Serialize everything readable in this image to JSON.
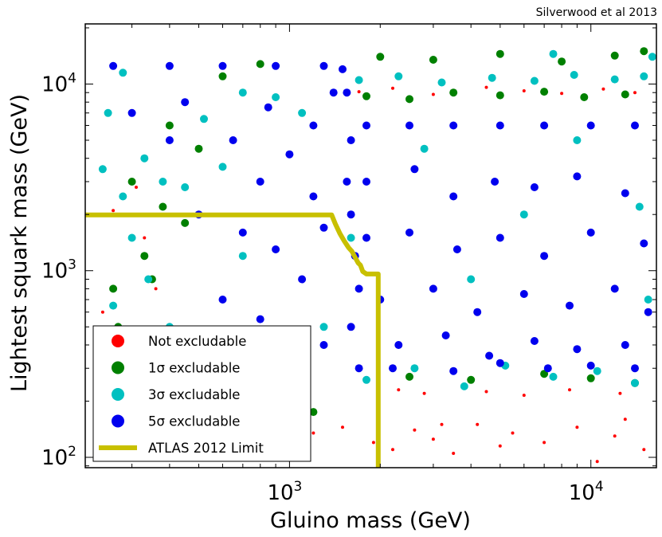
{
  "credit": "Silverwood et al 2013",
  "chart_data": {
    "type": "scatter",
    "xlabel": "Gluino mass (GeV)",
    "ylabel": "Lightest squark mass (GeV)",
    "xscale": "log",
    "yscale": "log",
    "xlim": [
      210,
      16500
    ],
    "ylim": [
      88,
      21000
    ],
    "xticks": [
      {
        "value": 1000,
        "base": "10",
        "exp": "3"
      },
      {
        "value": 10000,
        "base": "10",
        "exp": "4"
      }
    ],
    "yticks": [
      {
        "value": 100,
        "base": "10",
        "exp": "2"
      },
      {
        "value": 1000,
        "base": "10",
        "exp": "3"
      },
      {
        "value": 10000,
        "base": "10",
        "exp": "4"
      }
    ],
    "grid": false,
    "legend_position": "bottom-left",
    "series": [
      {
        "name": "Not excludable",
        "color": "#ff0000",
        "marker": "point",
        "points": [
          [
            300,
            150
          ],
          [
            420,
            130
          ],
          [
            600,
            160
          ],
          [
            800,
            140
          ],
          [
            1200,
            135
          ],
          [
            1500,
            145
          ],
          [
            2200,
            110
          ],
          [
            2600,
            140
          ],
          [
            3000,
            125
          ],
          [
            3500,
            105
          ],
          [
            4200,
            150
          ],
          [
            5500,
            135
          ],
          [
            7000,
            120
          ],
          [
            9000,
            145
          ],
          [
            12000,
            130
          ],
          [
            15000,
            110
          ],
          [
            2300,
            230
          ],
          [
            2800,
            220
          ],
          [
            4500,
            225
          ],
          [
            6000,
            215
          ],
          [
            8500,
            230
          ],
          [
            12500,
            220
          ],
          [
            1700,
            9100
          ],
          [
            2200,
            9500
          ],
          [
            3000,
            8800
          ],
          [
            4500,
            9600
          ],
          [
            6000,
            9200
          ],
          [
            8000,
            8900
          ],
          [
            11000,
            9400
          ],
          [
            14000,
            9000
          ],
          [
            260,
            2100
          ],
          [
            330,
            1500
          ],
          [
            360,
            800
          ],
          [
            250,
            350
          ],
          [
            240,
            600
          ],
          [
            310,
            2800
          ],
          [
            900,
            135
          ],
          [
            1900,
            120
          ],
          [
            3200,
            150
          ],
          [
            5000,
            115
          ],
          [
            10500,
            95
          ],
          [
            13000,
            160
          ]
        ]
      },
      {
        "name": "1σ excludable",
        "color": "#008000",
        "marker": "circle",
        "points": [
          [
            300,
            3000
          ],
          [
            380,
            2200
          ],
          [
            450,
            1800
          ],
          [
            330,
            1200
          ],
          [
            270,
            500
          ],
          [
            500,
            4500
          ],
          [
            260,
            800
          ],
          [
            1800,
            8600
          ],
          [
            2500,
            8300
          ],
          [
            3500,
            9000
          ],
          [
            5000,
            8700
          ],
          [
            7000,
            9100
          ],
          [
            9500,
            8500
          ],
          [
            13000,
            8800
          ],
          [
            2000,
            14000
          ],
          [
            3000,
            13500
          ],
          [
            5000,
            14500
          ],
          [
            8000,
            13200
          ],
          [
            12000,
            14200
          ],
          [
            15000,
            15000
          ],
          [
            2500,
            270
          ],
          [
            4000,
            260
          ],
          [
            7000,
            280
          ],
          [
            10000,
            265
          ],
          [
            14000,
            250
          ],
          [
            600,
            11000
          ],
          [
            800,
            12800
          ],
          [
            400,
            6000
          ],
          [
            350,
            900
          ],
          [
            900,
            190
          ],
          [
            1200,
            175
          ]
        ]
      },
      {
        "name": "3σ excludable",
        "color": "#00c0c0",
        "marker": "circle",
        "points": [
          [
            240,
            3500
          ],
          [
            280,
            2500
          ],
          [
            330,
            4000
          ],
          [
            380,
            3000
          ],
          [
            300,
            1500
          ],
          [
            340,
            900
          ],
          [
            260,
            650
          ],
          [
            400,
            500
          ],
          [
            520,
            6500
          ],
          [
            700,
            9000
          ],
          [
            900,
            8500
          ],
          [
            1100,
            7000
          ],
          [
            600,
            3600
          ],
          [
            450,
            2800
          ],
          [
            250,
            7000
          ],
          [
            280,
            11500
          ],
          [
            1700,
            10500
          ],
          [
            2300,
            11000
          ],
          [
            3200,
            10200
          ],
          [
            4700,
            10800
          ],
          [
            6500,
            10400
          ],
          [
            8800,
            11200
          ],
          [
            12000,
            10600
          ],
          [
            15000,
            11000
          ],
          [
            1800,
            260
          ],
          [
            2600,
            300
          ],
          [
            3800,
            240
          ],
          [
            5200,
            310
          ],
          [
            7500,
            270
          ],
          [
            10500,
            290
          ],
          [
            14000,
            250
          ],
          [
            15500,
            700
          ],
          [
            14500,
            2200
          ],
          [
            1600,
            1500
          ],
          [
            2800,
            4500
          ],
          [
            4000,
            900
          ],
          [
            6000,
            2000
          ],
          [
            9000,
            5000
          ],
          [
            1300,
            500
          ],
          [
            700,
            1200
          ],
          [
            1000,
            380
          ],
          [
            16000,
            14000
          ],
          [
            7500,
            14500
          ]
        ]
      },
      {
        "name": "5σ excludable",
        "color": "#0000ee",
        "marker": "circle",
        "points": [
          [
            260,
            12500
          ],
          [
            400,
            12500
          ],
          [
            600,
            12500
          ],
          [
            900,
            12500
          ],
          [
            1300,
            12500
          ],
          [
            1500,
            12000
          ],
          [
            1550,
            9000
          ],
          [
            1600,
            5000
          ],
          [
            1550,
            3000
          ],
          [
            1600,
            2000
          ],
          [
            1650,
            1200
          ],
          [
            1700,
            800
          ],
          [
            1600,
            500
          ],
          [
            1700,
            300
          ],
          [
            1800,
            6000
          ],
          [
            2500,
            6000
          ],
          [
            3500,
            6000
          ],
          [
            5000,
            6000
          ],
          [
            7000,
            6000
          ],
          [
            10000,
            6000
          ],
          [
            14000,
            6000
          ],
          [
            1800,
            3000
          ],
          [
            2600,
            3500
          ],
          [
            3500,
            2500
          ],
          [
            4800,
            3000
          ],
          [
            6500,
            2800
          ],
          [
            9000,
            3200
          ],
          [
            13000,
            2600
          ],
          [
            1800,
            1500
          ],
          [
            2500,
            1600
          ],
          [
            3600,
            1300
          ],
          [
            5000,
            1500
          ],
          [
            7000,
            1200
          ],
          [
            10000,
            1600
          ],
          [
            15000,
            1400
          ],
          [
            2000,
            700
          ],
          [
            3000,
            800
          ],
          [
            4200,
            600
          ],
          [
            6000,
            750
          ],
          [
            8500,
            650
          ],
          [
            12000,
            800
          ],
          [
            15500,
            600
          ],
          [
            2300,
            400
          ],
          [
            3300,
            450
          ],
          [
            4600,
            350
          ],
          [
            6500,
            420
          ],
          [
            9000,
            380
          ],
          [
            13000,
            400
          ],
          [
            2200,
            300
          ],
          [
            3500,
            290
          ],
          [
            5000,
            320
          ],
          [
            7200,
            300
          ],
          [
            10000,
            310
          ],
          [
            14000,
            300
          ],
          [
            300,
            7000
          ],
          [
            450,
            8000
          ],
          [
            650,
            5000
          ],
          [
            800,
            3000
          ],
          [
            1000,
            4200
          ],
          [
            1200,
            2500
          ],
          [
            500,
            2000
          ],
          [
            700,
            1600
          ],
          [
            900,
            1300
          ],
          [
            1100,
            900
          ],
          [
            600,
            700
          ],
          [
            800,
            550
          ],
          [
            1000,
            450
          ],
          [
            1300,
            1700
          ],
          [
            400,
            5000
          ],
          [
            1200,
            6000
          ],
          [
            1400,
            9000
          ],
          [
            1300,
            400
          ],
          [
            850,
            7500
          ]
        ]
      },
      {
        "name": "ATLAS 2012 Limit",
        "color": "#c8c000",
        "marker": "line",
        "points": [
          [
            210,
            1990
          ],
          [
            1380,
            1990
          ],
          [
            1420,
            1780
          ],
          [
            1470,
            1580
          ],
          [
            1520,
            1440
          ],
          [
            1570,
            1330
          ],
          [
            1610,
            1270
          ],
          [
            1650,
            1180
          ],
          [
            1690,
            1100
          ],
          [
            1720,
            1070
          ],
          [
            1750,
            990
          ],
          [
            1800,
            960
          ],
          [
            1970,
            960
          ],
          [
            1970,
            88
          ]
        ]
      }
    ]
  }
}
